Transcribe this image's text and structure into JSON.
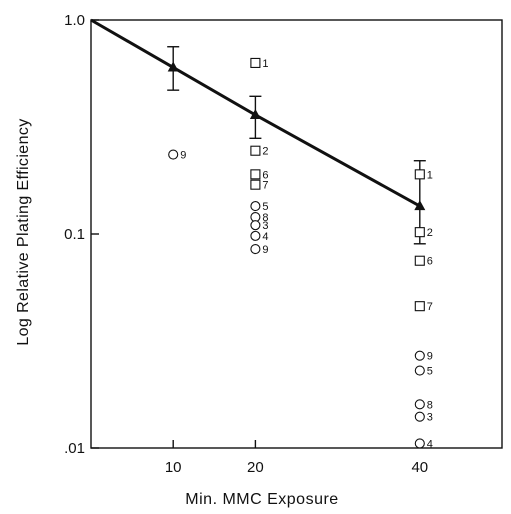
{
  "chart_data": {
    "type": "scatter",
    "title": "",
    "xlabel": "Min.  MMC Exposure",
    "ylabel": "Log Relative Plating Efficiency",
    "xlim": [
      0,
      50
    ],
    "ylim": [
      0.01,
      1.0
    ],
    "yscale": "log",
    "xticks": [
      10,
      20,
      40
    ],
    "xtick_labels": [
      "10",
      "20",
      "40"
    ],
    "yticks": [
      0.01,
      0.1,
      1.0
    ],
    "ytick_labels": [
      ".01",
      "0.1",
      "1.0"
    ],
    "grid": false,
    "legend": "none",
    "mean_line": {
      "name": "",
      "marker": "triangle",
      "points": [
        {
          "x": 0,
          "y": 1.0
        },
        {
          "x": 10,
          "y": 0.6,
          "err_low": 0.47,
          "err_high": 0.75
        },
        {
          "x": 20,
          "y": 0.36,
          "err_low": 0.28,
          "err_high": 0.44
        },
        {
          "x": 40,
          "y": 0.135,
          "err_low": 0.09,
          "err_high": 0.22
        }
      ]
    },
    "series": [
      {
        "marker": "square",
        "points": [
          {
            "x": 20,
            "y": 0.63,
            "label": "1"
          },
          {
            "x": 20,
            "y": 0.245,
            "label": "2"
          },
          {
            "x": 20,
            "y": 0.19,
            "label": "6"
          },
          {
            "x": 20,
            "y": 0.17,
            "label": "7"
          },
          {
            "x": 40,
            "y": 0.19,
            "label": "1"
          },
          {
            "x": 40,
            "y": 0.102,
            "label": "2"
          },
          {
            "x": 40,
            "y": 0.075,
            "label": "6"
          },
          {
            "x": 40,
            "y": 0.046,
            "label": "7"
          }
        ]
      },
      {
        "marker": "circle",
        "points": [
          {
            "x": 10,
            "y": 0.235,
            "label": "9"
          },
          {
            "x": 20,
            "y": 0.135,
            "label": "5"
          },
          {
            "x": 20,
            "y": 0.12,
            "label": "8"
          },
          {
            "x": 20,
            "y": 0.11,
            "label": "3"
          },
          {
            "x": 20,
            "y": 0.098,
            "label": "4"
          },
          {
            "x": 20,
            "y": 0.085,
            "label": "9"
          },
          {
            "x": 40,
            "y": 0.027,
            "label": "9"
          },
          {
            "x": 40,
            "y": 0.023,
            "label": "5"
          },
          {
            "x": 40,
            "y": 0.016,
            "label": "8"
          },
          {
            "x": 40,
            "y": 0.014,
            "label": "3"
          },
          {
            "x": 40,
            "y": 0.0105,
            "label": "4"
          }
        ]
      }
    ]
  }
}
